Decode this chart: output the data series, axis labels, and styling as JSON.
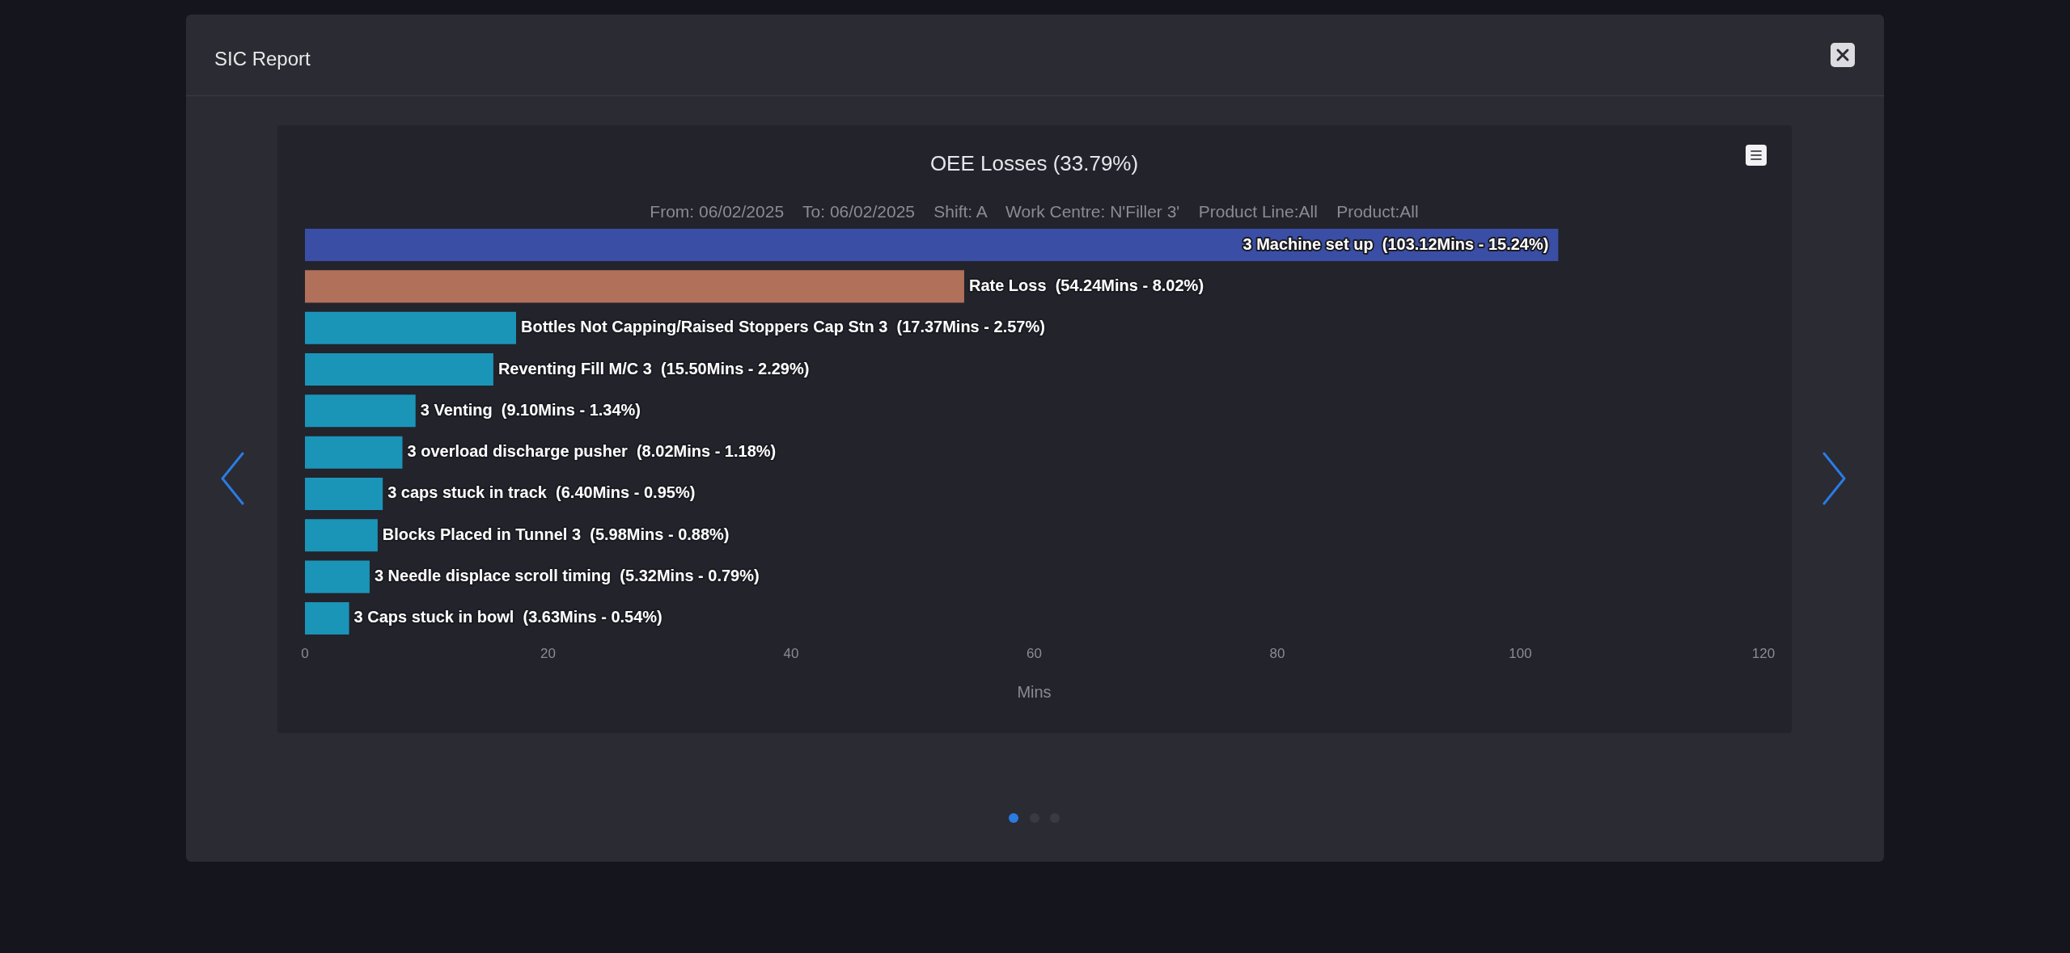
{
  "chart_data": {
    "type": "bar",
    "orientation": "horizontal",
    "title": "OEE Losses (33.79%)",
    "subtitle": "From: 06/02/2025    To: 06/02/2025    Shift: A    Work Centre: N'Filler 3'    Product Line:All    Product:All",
    "xlabel": "Mins",
    "annotations": [
      "SIC Report"
    ],
    "categories": [
      "3 Machine set up",
      "Rate Loss",
      "Bottles Not Capping/Raised Stoppers Cap Stn 3",
      "Reventing Fill M/C 3",
      "3 Venting",
      "3 overload discharge pusher",
      "3 caps stuck in track",
      "Blocks Placed in Tunnel 3",
      "3 Needle displace scroll timing",
      "3 Caps stuck in bowl"
    ],
    "values": [
      103.12,
      54.24,
      17.37,
      15.5,
      9.1,
      8.02,
      6.4,
      5.98,
      5.32,
      3.63
    ],
    "colors": [
      "#3a4ea5",
      "#b0705a",
      "#1a95b8",
      "#1a95b8",
      "#1a95b8",
      "#1a95b8",
      "#1a95b8",
      "#1a95b8",
      "#1a95b8",
      "#1a95b8"
    ],
    "value_labels": [
      "(103.12Mins - 15.24%)",
      "(54.24Mins - 8.02%)",
      "(17.37Mins - 2.57%)",
      "(15.50Mins - 2.29%)",
      "(9.10Mins - 1.34%)",
      "(8.02Mins - 1.18%)",
      "(6.40Mins - 0.95%)",
      "(5.98Mins - 0.88%)",
      "(5.32Mins - 0.79%)",
      "(3.63Mins - 0.54%)"
    ],
    "xlim": [
      0,
      120
    ],
    "xticks": [
      0,
      20,
      40,
      60,
      80,
      100,
      120
    ],
    "grid": false,
    "legend": false,
    "tick_labels": "x"
  }
}
